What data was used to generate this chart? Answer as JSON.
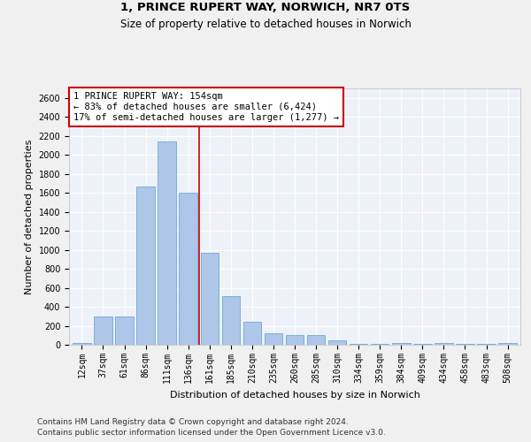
{
  "title_line1": "1, PRINCE RUPERT WAY, NORWICH, NR7 0TS",
  "title_line2": "Size of property relative to detached houses in Norwich",
  "xlabel": "Distribution of detached houses by size in Norwich",
  "ylabel": "Number of detached properties",
  "categories": [
    "12sqm",
    "37sqm",
    "61sqm",
    "86sqm",
    "111sqm",
    "136sqm",
    "161sqm",
    "185sqm",
    "210sqm",
    "235sqm",
    "260sqm",
    "285sqm",
    "310sqm",
    "334sqm",
    "359sqm",
    "384sqm",
    "409sqm",
    "434sqm",
    "458sqm",
    "483sqm",
    "508sqm"
  ],
  "values": [
    20,
    300,
    300,
    1670,
    2140,
    1600,
    970,
    510,
    245,
    120,
    100,
    100,
    45,
    10,
    5,
    20,
    5,
    20,
    5,
    5,
    20
  ],
  "bar_color": "#aec6e8",
  "bar_edge_color": "#5a9fd4",
  "background_color": "#eef2f8",
  "grid_color": "#ffffff",
  "vline_color": "#cc0000",
  "annotation_box_color": "#cc0000",
  "ylim": [
    0,
    2700
  ],
  "yticks": [
    0,
    200,
    400,
    600,
    800,
    1000,
    1200,
    1400,
    1600,
    1800,
    2000,
    2200,
    2400,
    2600
  ],
  "footer_line1": "Contains HM Land Registry data © Crown copyright and database right 2024.",
  "footer_line2": "Contains public sector information licensed under the Open Government Licence v3.0.",
  "title_fontsize": 9.5,
  "subtitle_fontsize": 8.5,
  "axis_label_fontsize": 8,
  "tick_fontsize": 7,
  "annotation_fontsize": 7.5,
  "footer_fontsize": 6.5
}
